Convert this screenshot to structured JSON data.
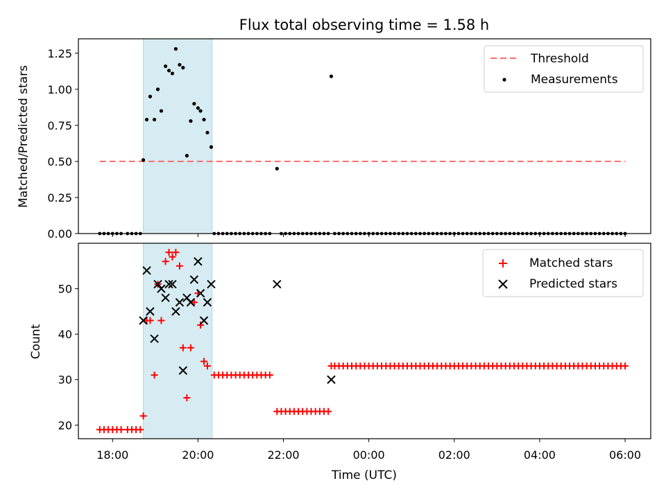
{
  "chart_data": [
    {
      "type": "scatter",
      "title": "Flux total observing time = 1.58 h",
      "ylabel": "Matched/Predicted stars",
      "xlabel": "",
      "xlim": [
        17.2,
        30.6
      ],
      "ylim": [
        0,
        1.35
      ],
      "xticks": [
        18,
        20,
        22,
        24,
        26,
        28,
        30
      ],
      "yticks": [
        0,
        0.25,
        0.5,
        0.75,
        1.0,
        1.25
      ],
      "ytick_labels": [
        "0.00",
        "0.25",
        "0.50",
        "0.75",
        "1.00",
        "1.25"
      ],
      "shaded_interval": [
        18.72,
        20.33
      ],
      "legend_position": "top-right",
      "threshold": {
        "name": "Threshold",
        "value": 0.5,
        "x_range": [
          17.7,
          30.0
        ],
        "color": "#ff6b6b"
      },
      "measurements": {
        "name": "Measurements",
        "color": "#000000",
        "points": [
          [
            18.72,
            0.51
          ],
          [
            18.8,
            0.79
          ],
          [
            18.88,
            0.95
          ],
          [
            18.98,
            0.79
          ],
          [
            19.06,
            1.0
          ],
          [
            19.14,
            0.85
          ],
          [
            19.24,
            1.16
          ],
          [
            19.32,
            1.13
          ],
          [
            19.4,
            1.11
          ],
          [
            19.48,
            1.28
          ],
          [
            19.57,
            1.17
          ],
          [
            19.65,
            1.15
          ],
          [
            19.74,
            0.54
          ],
          [
            19.83,
            0.78
          ],
          [
            19.91,
            0.9
          ],
          [
            20.0,
            0.87
          ],
          [
            20.06,
            0.85
          ],
          [
            20.14,
            0.79
          ],
          [
            20.22,
            0.7
          ],
          [
            20.31,
            0.6
          ],
          [
            21.85,
            0.45
          ],
          [
            23.12,
            1.09
          ]
        ],
        "zero_segments": [
          [
            17.7,
            18.25
          ],
          [
            18.35,
            18.65
          ],
          [
            20.38,
            21.75
          ],
          [
            21.95,
            23.05
          ],
          [
            23.2,
            30.0
          ]
        ],
        "zero_spacing": 0.1
      }
    },
    {
      "type": "scatter",
      "title": "",
      "ylabel": "Count",
      "xlabel": "Time (UTC)",
      "xlim": [
        17.2,
        30.6
      ],
      "ylim": [
        17,
        60
      ],
      "xticks": [
        18,
        20,
        22,
        24,
        26,
        28,
        30
      ],
      "xtick_labels": [
        "18:00",
        "20:00",
        "22:00",
        "00:00",
        "02:00",
        "04:00",
        "06:00"
      ],
      "yticks": [
        20,
        30,
        40,
        50
      ],
      "ytick_labels": [
        "20",
        "30",
        "40",
        "50"
      ],
      "shaded_interval": [
        18.72,
        20.33
      ],
      "legend_position": "top-right",
      "series": [
        {
          "name": "Matched stars",
          "marker": "+",
          "color": "#ff0000",
          "points": [
            [
              18.72,
              22
            ],
            [
              18.8,
              43
            ],
            [
              18.88,
              43
            ],
            [
              18.98,
              31
            ],
            [
              19.06,
              51
            ],
            [
              19.14,
              43
            ],
            [
              19.24,
              56
            ],
            [
              19.32,
              58
            ],
            [
              19.4,
              57
            ],
            [
              19.48,
              58
            ],
            [
              19.57,
              55
            ],
            [
              19.65,
              37
            ],
            [
              19.74,
              26
            ],
            [
              19.83,
              37
            ],
            [
              19.91,
              47
            ],
            [
              20.0,
              49
            ],
            [
              20.06,
              42
            ],
            [
              20.14,
              34
            ],
            [
              20.22,
              33
            ],
            [
              23.12,
              33
            ]
          ],
          "flat_runs": [
            {
              "value": 19,
              "segments": [
                [
                  17.7,
                  18.25
                ],
                [
                  18.35,
                  18.65
                ]
              ]
            },
            {
              "value": 31,
              "segments": [
                [
                  20.38,
                  21.75
                ]
              ]
            },
            {
              "value": 23,
              "segments": [
                [
                  21.85,
                  23.05
                ]
              ]
            },
            {
              "value": 33,
              "segments": [
                [
                  23.2,
                  30.0
                ]
              ]
            }
          ],
          "run_spacing": 0.1
        },
        {
          "name": "Predicted stars",
          "marker": "x",
          "color": "#000000",
          "points": [
            [
              18.72,
              43
            ],
            [
              18.8,
              54
            ],
            [
              18.88,
              45
            ],
            [
              18.98,
              39
            ],
            [
              19.06,
              51
            ],
            [
              19.14,
              50
            ],
            [
              19.24,
              48
            ],
            [
              19.32,
              51
            ],
            [
              19.4,
              51
            ],
            [
              19.48,
              45
            ],
            [
              19.57,
              47
            ],
            [
              19.65,
              32
            ],
            [
              19.74,
              48
            ],
            [
              19.83,
              47
            ],
            [
              19.91,
              52
            ],
            [
              20.0,
              56
            ],
            [
              20.06,
              49
            ],
            [
              20.14,
              43
            ],
            [
              20.22,
              47
            ],
            [
              20.31,
              51
            ],
            [
              21.85,
              51
            ],
            [
              23.12,
              30
            ]
          ]
        }
      ]
    }
  ]
}
